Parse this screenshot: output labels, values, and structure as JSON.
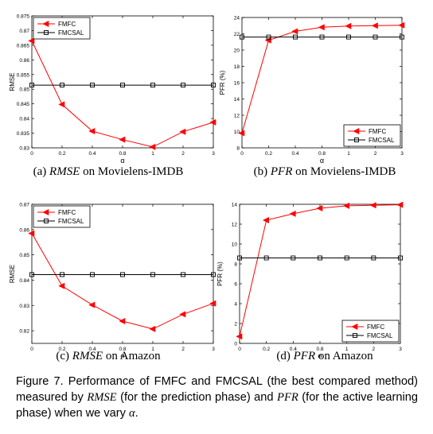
{
  "chart_data": [
    {
      "type": "line",
      "panel": "a",
      "x": [
        "0",
        "0.2",
        "0.4",
        "0.8",
        "1",
        "2",
        "3"
      ],
      "xlabel": "α",
      "ylabel": "RMSE",
      "ylim": [
        0.83,
        0.875
      ],
      "yticks": [
        "0.83",
        "0.835",
        "0.84",
        "0.845",
        "0.85",
        "0.855",
        "0.86",
        "0.865",
        "0.87",
        "0.875"
      ],
      "legend_position": "top-left",
      "series": [
        {
          "name": "FMFC",
          "marker": "triangle-left",
          "color": "#ff0000",
          "values": [
            0.8665,
            0.8448,
            0.8357,
            0.8328,
            0.8303,
            0.8355,
            0.8387
          ]
        },
        {
          "name": "FMCSAL",
          "marker": "square",
          "color": "#000000",
          "values": [
            0.8514,
            0.8514,
            0.8514,
            0.8514,
            0.8514,
            0.8514,
            0.8514
          ]
        }
      ]
    },
    {
      "type": "line",
      "panel": "b",
      "x": [
        "0",
        "0.2",
        "0.4",
        "0.8",
        "1",
        "2",
        "3"
      ],
      "xlabel": "α",
      "ylabel": "PFR (%)",
      "ylim": [
        8,
        24
      ],
      "yticks": [
        "8",
        "10",
        "12",
        "14",
        "16",
        "18",
        "20",
        "22",
        "24"
      ],
      "legend_position": "bottom-right",
      "series": [
        {
          "name": "FMFC",
          "marker": "triangle-left",
          "color": "#ff0000",
          "values": [
            9.8,
            21.2,
            22.3,
            22.8,
            22.95,
            23.0,
            23.05
          ]
        },
        {
          "name": "FMCSAL",
          "marker": "square",
          "color": "#000000",
          "values": [
            21.6,
            21.6,
            21.6,
            21.6,
            21.6,
            21.6,
            21.6
          ]
        }
      ]
    },
    {
      "type": "line",
      "panel": "c",
      "x": [
        "0",
        "0.2",
        "0.4",
        "0.8",
        "1",
        "2",
        "3"
      ],
      "xlabel": "α",
      "ylabel": "RMSE",
      "ylim": [
        0.815,
        0.87
      ],
      "yticks": [
        "0.82",
        "0.83",
        "0.84",
        "0.85",
        "0.86",
        "0.87"
      ],
      "legend_position": "top-left",
      "series": [
        {
          "name": "FMFC",
          "marker": "triangle-left",
          "color": "#ff0000",
          "values": [
            0.8585,
            0.8377,
            0.8302,
            0.8238,
            0.8207,
            0.8265,
            0.8308
          ]
        },
        {
          "name": "FMCSAL",
          "marker": "square",
          "color": "#000000",
          "values": [
            0.8422,
            0.8422,
            0.8422,
            0.8422,
            0.8422,
            0.8422,
            0.8422
          ]
        }
      ]
    },
    {
      "type": "line",
      "panel": "d",
      "x": [
        "0",
        "0.2",
        "0.4",
        "0.8",
        "1",
        "2",
        "3"
      ],
      "xlabel": "α",
      "ylabel": "PFR (%)",
      "ylim": [
        0,
        14
      ],
      "yticks": [
        "0",
        "2",
        "4",
        "6",
        "8",
        "10",
        "12",
        "14"
      ],
      "legend_position": "bottom-right",
      "series": [
        {
          "name": "FMFC",
          "marker": "triangle-left",
          "color": "#ff0000",
          "values": [
            0.7,
            12.4,
            13.05,
            13.6,
            13.85,
            13.9,
            13.95
          ]
        },
        {
          "name": "FMCSAL",
          "marker": "square",
          "color": "#000000",
          "values": [
            8.6,
            8.6,
            8.6,
            8.6,
            8.6,
            8.6,
            8.6
          ]
        }
      ]
    }
  ],
  "subcaptions": [
    {
      "label": "(a)",
      "metric": "RMSE",
      "text": "on Movielens-IMDB"
    },
    {
      "label": "(b)",
      "metric": "PFR",
      "text": "on Movielens-IMDB"
    },
    {
      "label": "(c)",
      "metric": "RMSE",
      "text": "on Amazon"
    },
    {
      "label": "(d)",
      "metric": "PFR",
      "text": "on Amazon"
    }
  ],
  "caption": {
    "part1": "Figure 7. Performance of FMFC and FMCSAL (the best compared method) measured by ",
    "metric1": "RMSE",
    "part2": " (for the prediction phase) and ",
    "metric2": "PFR",
    "part3": " (for the active learning phase) when we vary ",
    "symbol": "α",
    "part4": "."
  }
}
